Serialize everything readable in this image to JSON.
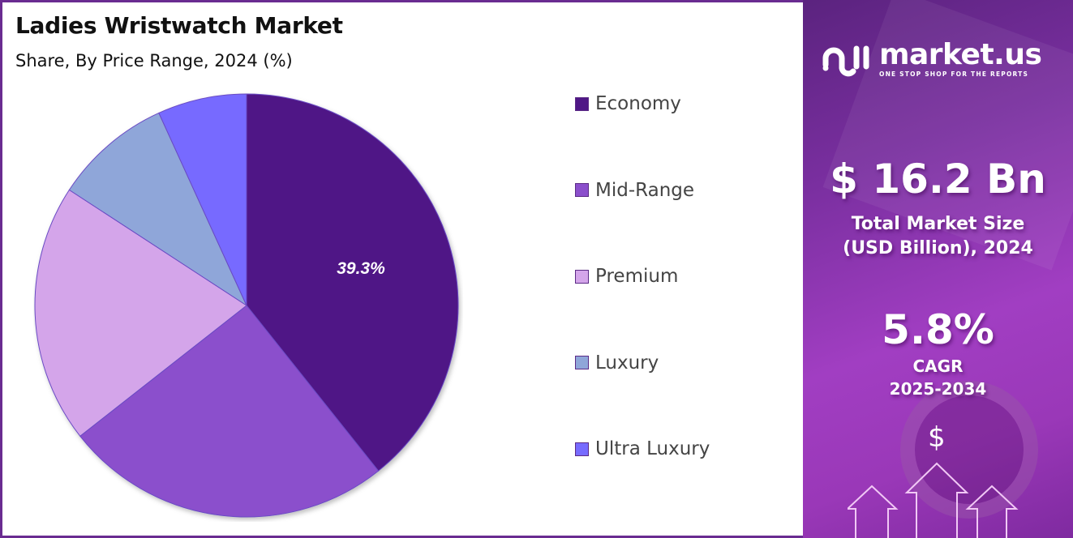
{
  "header": {
    "title": "Ladies Wristwatch Market",
    "subtitle": "Share, By Price Range, 2024 (%)"
  },
  "legend": {
    "items": [
      {
        "label": "Economy",
        "color": "#4f1786"
      },
      {
        "label": "Mid-Range",
        "color": "#8b4fcc"
      },
      {
        "label": "Premium",
        "color": "#d4a5ea"
      },
      {
        "label": "Luxury",
        "color": "#8fa6d9"
      },
      {
        "label": "Ultra Luxury",
        "color": "#776bff"
      }
    ]
  },
  "pie_label": "39.3%",
  "sidebar": {
    "logo_text": "market.us",
    "logo_tagline": "ONE STOP SHOP FOR THE REPORTS",
    "market_value": "$ 16.2 Bn",
    "market_label_line1": "Total Market Size",
    "market_label_line2": "(USD Billion), 2024",
    "cagr_value": "5.8%",
    "cagr_label_line1": "CAGR",
    "cagr_label_line2": "2025-2034",
    "dollar_symbol": "$"
  },
  "chart_data": {
    "type": "pie",
    "title": "Ladies Wristwatch Market",
    "subtitle": "Share, By Price Range, 2024 (%)",
    "categories": [
      "Economy",
      "Mid-Range",
      "Premium",
      "Luxury",
      "Ultra Luxury"
    ],
    "values": [
      39.3,
      25.1,
      19.8,
      9.0,
      6.8
    ],
    "colors": [
      "#4f1786",
      "#8b4fcc",
      "#d4a5ea",
      "#8fa6d9",
      "#776bff"
    ],
    "labeled_values": {
      "Economy": 39.3
    },
    "start_angle": "12 o'clock, clockwise",
    "legend_position": "right"
  }
}
